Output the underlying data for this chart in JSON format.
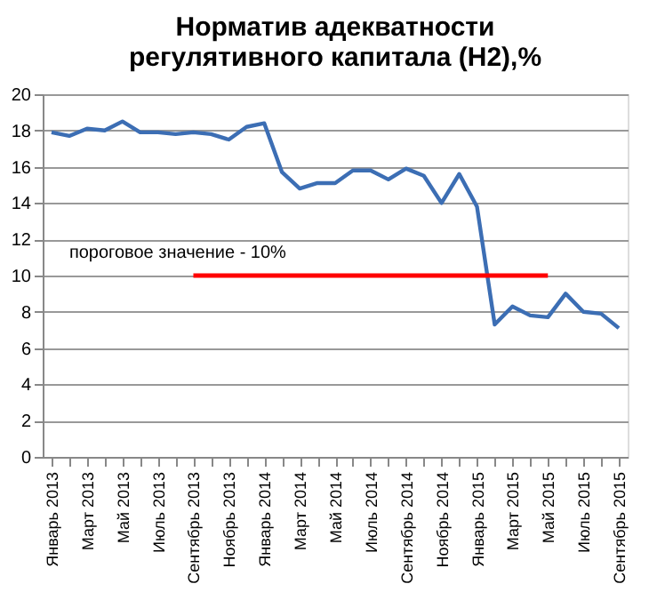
{
  "chart_data": {
    "type": "line",
    "title": [
      "Норматив адекватности",
      "регулятивного капитала (Н2),%"
    ],
    "categories": [
      "Январь 2013",
      null,
      "Март 2013",
      null,
      "Май 2013",
      null,
      "Июль 2013",
      null,
      "Сентябрь 2013",
      null,
      "Ноябрь 2013",
      null,
      "Январь 2014",
      null,
      "Март 2014",
      null,
      "Май 2014",
      null,
      "Июль 2014",
      null,
      "Сентябрь 2014",
      null,
      "Ноябрь 2014",
      null,
      "Январь 2015",
      null,
      "Март 2015",
      null,
      "Май 2015",
      null,
      "Июль 2015",
      null,
      "Сентябрь 2015"
    ],
    "series": [
      {
        "color": "#3c6eb4",
        "values": [
          17.9,
          17.7,
          18.1,
          18.0,
          18.5,
          17.9,
          17.9,
          17.8,
          17.9,
          17.8,
          17.5,
          18.2,
          18.4,
          15.7,
          14.8,
          15.1,
          15.1,
          15.8,
          15.8,
          15.3,
          15.9,
          15.5,
          14.0,
          15.6,
          13.8,
          7.3,
          8.3,
          7.8,
          7.7,
          9.0,
          8.0,
          7.9,
          7.1
        ]
      }
    ],
    "ylim": [
      0,
      20
    ],
    "yticks": [
      0,
      2,
      4,
      6,
      8,
      10,
      12,
      14,
      16,
      18,
      20
    ],
    "grid": "y",
    "ref_lines": [
      {
        "axis": "y",
        "value": 10,
        "label": "пороговое значение - 10%",
        "color": "#ff0000"
      }
    ]
  }
}
